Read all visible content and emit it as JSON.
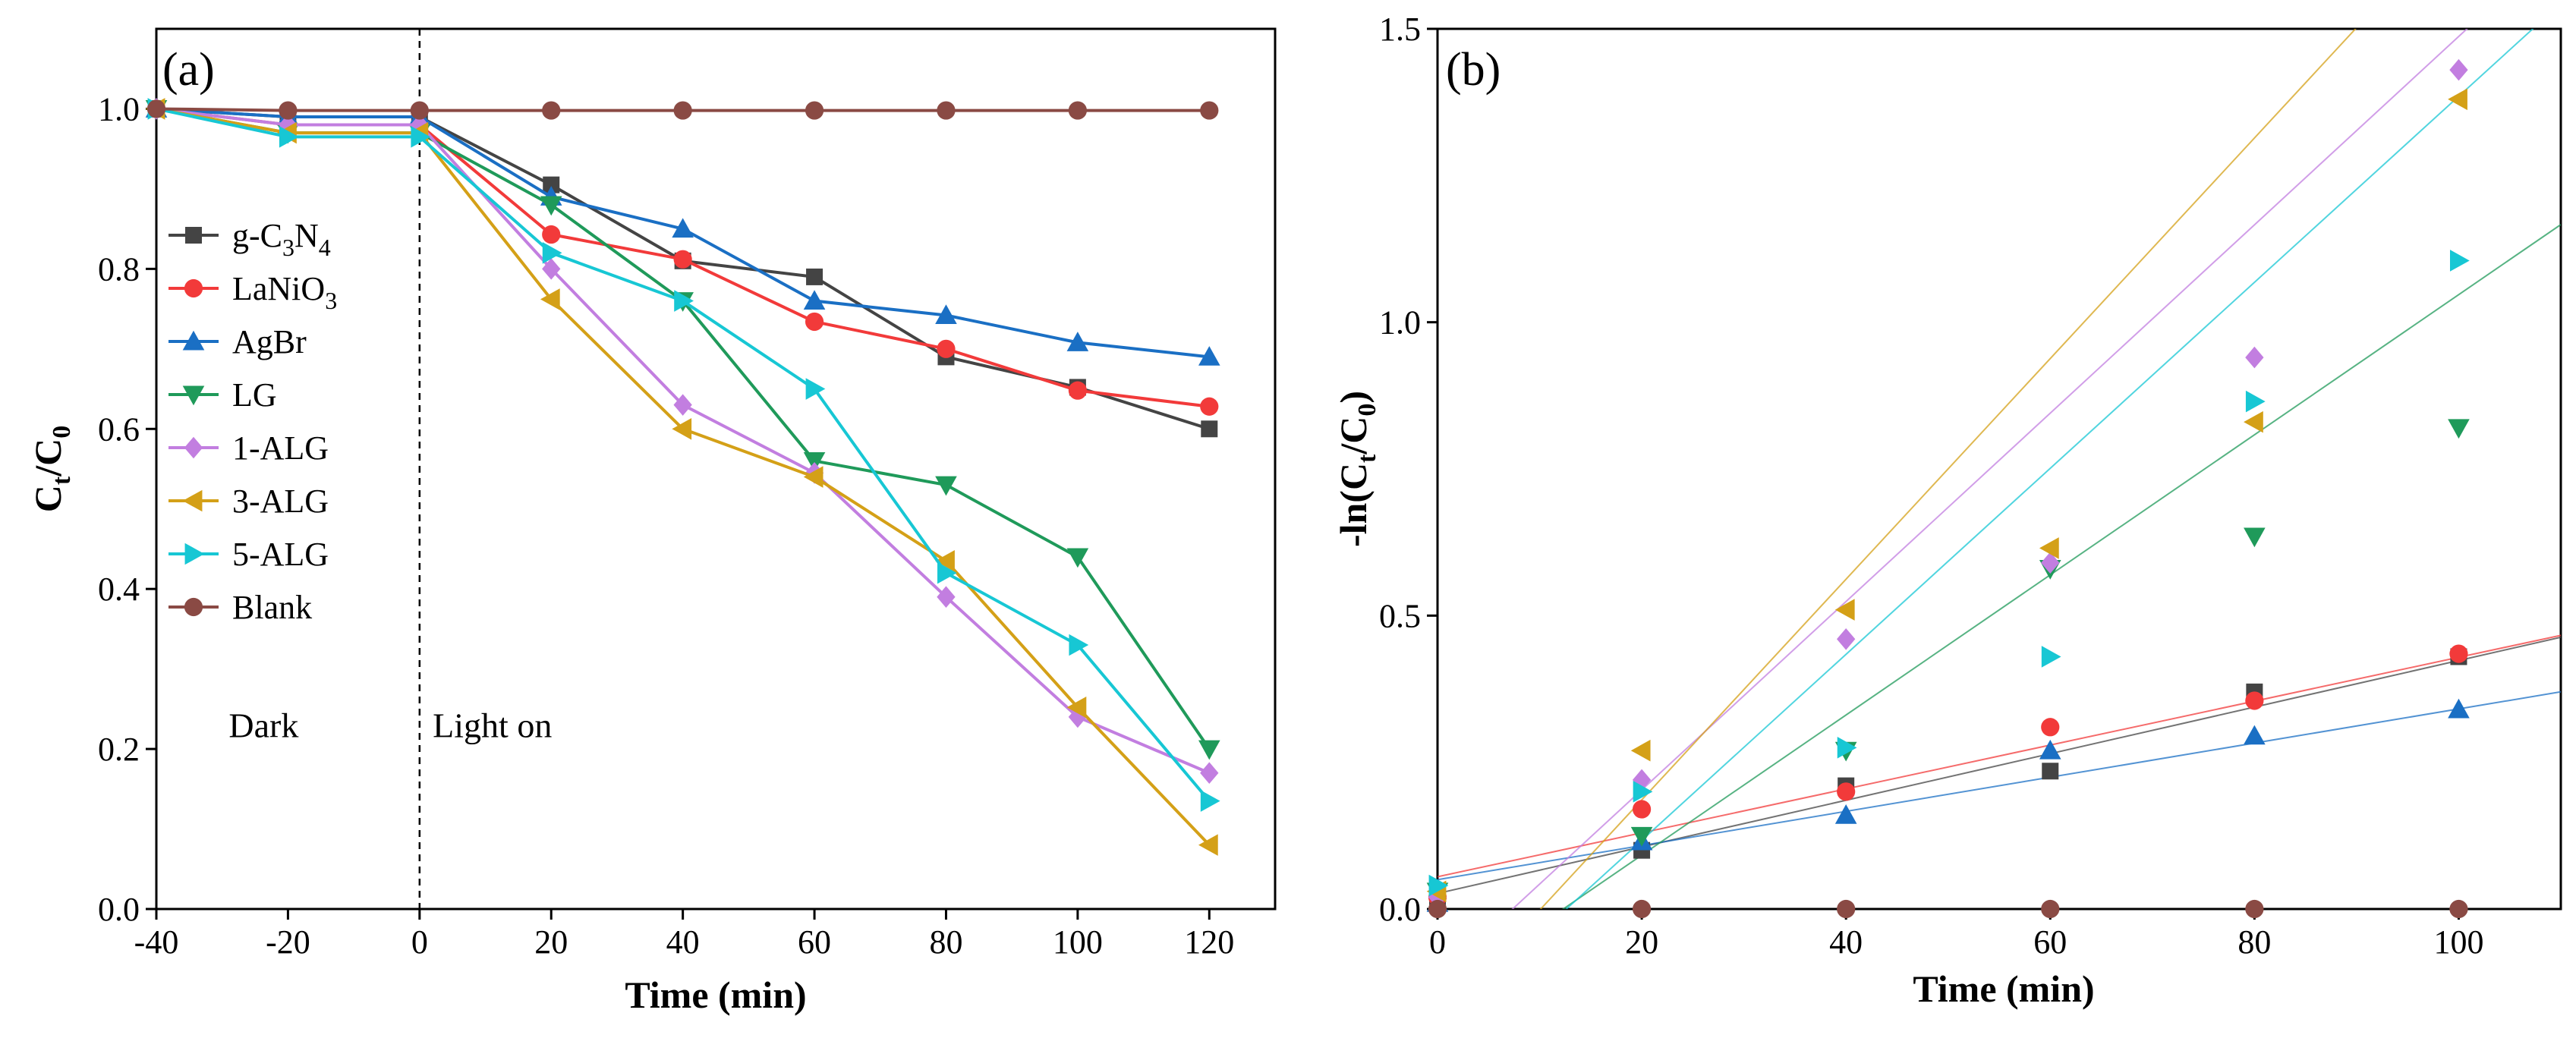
{
  "chart_data": [
    {
      "type": "line",
      "panel_label": "(a)",
      "xlabel": "Time (min)",
      "ylabel_main": "C",
      "ylabel_sub1": "t",
      "ylabel_mid": "/C",
      "ylabel_sub2": "0",
      "xlim": [
        -40,
        130
      ],
      "ylim": [
        0.0,
        1.1
      ],
      "xticks": [
        -40,
        -20,
        0,
        20,
        40,
        60,
        80,
        100,
        120
      ],
      "yticks": [
        0.0,
        0.2,
        0.4,
        0.6,
        0.8,
        1.0
      ],
      "x": [
        -40,
        -20,
        0,
        20,
        40,
        60,
        80,
        100,
        120
      ],
      "annotations": {
        "dark": "Dark",
        "light": "Light on"
      },
      "divider_x": 0,
      "legend_position": "left",
      "series": [
        {
          "name": "g-C3N4",
          "label_parts": [
            "g-C",
            "3",
            "N",
            "4"
          ],
          "color": "#444444",
          "marker": "square",
          "values": [
            1.0,
            0.99,
            0.99,
            0.905,
            0.81,
            0.79,
            0.69,
            0.652,
            0.6
          ]
        },
        {
          "name": "LaNiO3",
          "label_parts": [
            "LaNiO",
            "3"
          ],
          "color": "#f23a3a",
          "marker": "circle",
          "values": [
            1.0,
            0.98,
            0.98,
            0.843,
            0.812,
            0.734,
            0.7,
            0.648,
            0.628
          ]
        },
        {
          "name": "AgBr",
          "label_parts": [
            "AgBr"
          ],
          "color": "#1a6fc4",
          "marker": "triangle-up",
          "values": [
            1.0,
            0.99,
            0.99,
            0.89,
            0.85,
            0.76,
            0.742,
            0.708,
            0.69
          ]
        },
        {
          "name": "LG",
          "label_parts": [
            "LG"
          ],
          "color": "#1f9a5a",
          "marker": "triangle-down",
          "values": [
            1.0,
            0.97,
            0.97,
            0.88,
            0.76,
            0.56,
            0.53,
            0.44,
            0.2
          ]
        },
        {
          "name": "1-ALG",
          "label_parts": [
            "1-ALG"
          ],
          "color": "#c27ee0",
          "marker": "diamond",
          "values": [
            1.0,
            0.98,
            0.98,
            0.8,
            0.63,
            0.545,
            0.39,
            0.24,
            0.17
          ]
        },
        {
          "name": "3-ALG",
          "label_parts": [
            "3-ALG"
          ],
          "color": "#d4a017",
          "marker": "triangle-left",
          "values": [
            1.0,
            0.97,
            0.97,
            0.762,
            0.6,
            0.54,
            0.435,
            0.252,
            0.08
          ]
        },
        {
          "name": "5-ALG",
          "label_parts": [
            "5-ALG"
          ],
          "color": "#17c7d4",
          "marker": "triangle-right",
          "values": [
            1.0,
            0.965,
            0.965,
            0.82,
            0.76,
            0.65,
            0.42,
            0.33,
            0.135
          ]
        },
        {
          "name": "Blank",
          "label_parts": [
            "Blank"
          ],
          "color": "#8a4a44",
          "marker": "circle",
          "values": [
            1.0,
            0.998,
            0.998,
            0.998,
            0.998,
            0.998,
            0.998,
            0.998,
            0.998
          ]
        }
      ]
    },
    {
      "type": "scatter",
      "panel_label": "(b)",
      "xlabel": "Time (min)",
      "ylabel_pre": "-ln(C",
      "ylabel_sub1": "t",
      "ylabel_mid": "/C",
      "ylabel_sub2": "0",
      "ylabel_post": ")",
      "xlim": [
        0,
        110
      ],
      "ylim": [
        0.0,
        1.5
      ],
      "xticks": [
        0,
        20,
        40,
        60,
        80,
        100
      ],
      "yticks": [
        0.0,
        0.5,
        1.0,
        1.5
      ],
      "x": [
        0,
        20,
        40,
        60,
        80,
        100
      ],
      "series": [
        {
          "name": "g-C3N4",
          "color": "#444444",
          "marker": "square",
          "values": [
            0.01,
            0.1,
            0.21,
            0.235,
            0.37,
            0.43
          ],
          "fit": {
            "slope": 0.00397,
            "intercept": 0.0265
          }
        },
        {
          "name": "LaNiO3",
          "color": "#f23a3a",
          "marker": "circle",
          "values": [
            0.02,
            0.17,
            0.2,
            0.31,
            0.355,
            0.435
          ],
          "fit": {
            "slope": 0.00374,
            "intercept": 0.055
          }
        },
        {
          "name": "AgBr",
          "color": "#1a6fc4",
          "marker": "triangle-up",
          "values": [
            0.01,
            0.115,
            0.16,
            0.27,
            0.295,
            0.34
          ],
          "fit": {
            "slope": 0.00291,
            "intercept": 0.05
          }
        },
        {
          "name": "LG",
          "color": "#1f9a5a",
          "marker": "triangle-down",
          "values": [
            0.03,
            0.125,
            0.27,
            0.58,
            0.635,
            0.82
          ],
          "fit": {
            "slope": 0.01194,
            "intercept": -0.147
          }
        },
        {
          "name": "1-ALG",
          "color": "#c27ee0",
          "marker": "diamond",
          "values": [
            0.02,
            0.22,
            0.46,
            0.59,
            0.94,
            1.43
          ],
          "fit": {
            "slope": 0.01605,
            "intercept": -0.118
          }
        },
        {
          "name": "3-ALG",
          "color": "#d4a017",
          "marker": "triangle-left",
          "values": [
            0.03,
            0.27,
            0.51,
            0.615,
            0.83,
            1.38
          ],
          "fit": {
            "slope": 0.0188,
            "intercept": -0.19
          }
        },
        {
          "name": "5-ALG",
          "color": "#17c7d4",
          "marker": "triangle-right",
          "values": [
            0.04,
            0.2,
            0.275,
            0.43,
            0.865,
            1.105
          ],
          "fit": {
            "slope": 0.01585,
            "intercept": -0.2
          }
        },
        {
          "name": "Blank",
          "color": "#8a4a44",
          "marker": "circle",
          "values": [
            0.0,
            0.0,
            0.0,
            0.0,
            0.0,
            0.0
          ],
          "fit": null
        }
      ]
    }
  ]
}
